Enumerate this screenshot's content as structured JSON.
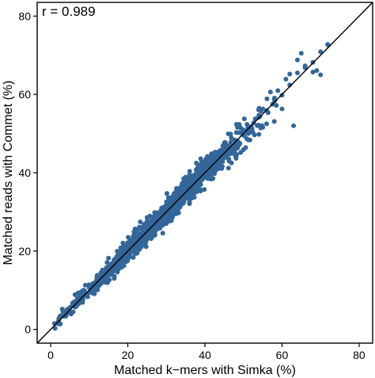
{
  "chart_data": {
    "type": "scatter",
    "title": "",
    "annotation": "r = 0.989",
    "xlabel": "Matched k−mers with Simka (%)",
    "ylabel": "Matched reads with Commet (%)",
    "xlim": [
      -3.5,
      83.5
    ],
    "ylim": [
      -3.5,
      83.5
    ],
    "xticks": [
      0,
      20,
      40,
      60,
      80
    ],
    "yticks": [
      0,
      20,
      40,
      60,
      80
    ],
    "reference_line": {
      "type": "y=x"
    },
    "grid": false,
    "legend": "none",
    "point_color": "#336699",
    "density": {
      "count": 1400,
      "center": 29,
      "spread": 11,
      "min": 1,
      "max": 72,
      "residual_sd": 1.2,
      "seed": 7
    },
    "points": [
      [
        1,
        1.5
      ],
      [
        2,
        2.2
      ],
      [
        3,
        3.5
      ],
      [
        4,
        4.1
      ],
      [
        5,
        5.6
      ],
      [
        6,
        6.4
      ],
      [
        7,
        7.8
      ],
      [
        8,
        8.3
      ],
      [
        10,
        10.6
      ],
      [
        12,
        12.1
      ],
      [
        14,
        14.8
      ],
      [
        16,
        15.9
      ],
      [
        18,
        18.7
      ],
      [
        20,
        19.6
      ],
      [
        22,
        22.8
      ],
      [
        24,
        23.7
      ],
      [
        26,
        26.9
      ],
      [
        28,
        27.6
      ],
      [
        30,
        30.8
      ],
      [
        32,
        31.6
      ],
      [
        34,
        34.9
      ],
      [
        36,
        35.5
      ],
      [
        38,
        38.8
      ],
      [
        40,
        39.7
      ],
      [
        42,
        42.6
      ],
      [
        44,
        43.8
      ],
      [
        46,
        46.9
      ],
      [
        48,
        47.7
      ],
      [
        50,
        50.6
      ],
      [
        52,
        51.8
      ],
      [
        54,
        54.7
      ],
      [
        56,
        55.9
      ],
      [
        58,
        58.8
      ],
      [
        60,
        59.8
      ],
      [
        62,
        62.4
      ],
      [
        64,
        65.5
      ],
      [
        66,
        66.8
      ],
      [
        68,
        68.2
      ],
      [
        70,
        70.9
      ],
      [
        72,
        72.6
      ],
      [
        55,
        51.6
      ],
      [
        60,
        56.3
      ],
      [
        63,
        52.0
      ],
      [
        58,
        53.1
      ],
      [
        57,
        60.6
      ],
      [
        68,
        65.7
      ],
      [
        70,
        65.0
      ],
      [
        65,
        70.5
      ],
      [
        69,
        66.1
      ],
      [
        64,
        68.8
      ],
      [
        61,
        63.9
      ],
      [
        56,
        52.5
      ],
      [
        48,
        44.1
      ],
      [
        45,
        47.5
      ],
      [
        36,
        32.1
      ],
      [
        25,
        28.6
      ],
      [
        15,
        18.2
      ],
      [
        35,
        38.9
      ],
      [
        9,
        11.3
      ],
      [
        11,
        9.4
      ],
      [
        3,
        5.2
      ],
      [
        62,
        65.2
      ],
      [
        66,
        67.3
      ],
      [
        54,
        49.8
      ]
    ]
  }
}
